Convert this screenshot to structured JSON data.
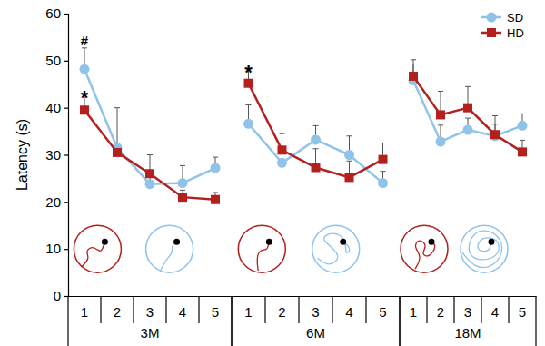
{
  "chart_data": [
    {
      "type": "line",
      "x_label": "3M",
      "y_label": "Latency (s)",
      "categories": [
        "1",
        "2",
        "3",
        "4",
        "5"
      ],
      "ylim": [
        0,
        60
      ],
      "yticks": [
        0,
        10,
        20,
        30,
        40,
        50,
        60
      ],
      "series": [
        {
          "name": "SD",
          "color": "#8fc3ea",
          "marker": "circle",
          "line_style": "solid",
          "values": [
            48.2,
            31.5,
            23.8,
            24.0,
            27.2
          ],
          "errors": [
            4.5,
            8.5,
            2.5,
            3.7,
            2.3
          ]
        },
        {
          "name": "HD",
          "color": "#b3201e",
          "marker": "square",
          "line_style": "solid",
          "values": [
            39.5,
            30.5,
            26.0,
            21.0,
            20.5
          ],
          "errors": [
            3.5,
            1.5,
            4.0,
            1.5,
            1.5
          ]
        }
      ],
      "annotations": [
        {
          "text": "#",
          "x": "1",
          "series": "SD"
        },
        {
          "text": "*",
          "x": "1",
          "series": "HD"
        }
      ]
    },
    {
      "type": "line",
      "x_label": "6M",
      "tick_labels": "x",
      "categories": [
        "1",
        "2",
        "3",
        "4",
        "5"
      ],
      "ylim": [
        0,
        60
      ],
      "series": [
        {
          "name": "SD",
          "color": "#8fc3ea",
          "marker": "circle",
          "line_style": "solid",
          "values": [
            36.6,
            28.3,
            33.2,
            30.0,
            24.0
          ],
          "errors": [
            4.0,
            2.5,
            3.0,
            4.0,
            2.5
          ]
        },
        {
          "name": "HD",
          "color": "#b3201e",
          "marker": "square",
          "line_style": "solid",
          "values": [
            45.2,
            31.0,
            27.3,
            25.2,
            29.0
          ],
          "errors": [
            3.2,
            3.5,
            4.0,
            3.5,
            3.5
          ]
        }
      ],
      "annotations": [
        {
          "text": "*",
          "x": "1",
          "series": "HD"
        }
      ]
    },
    {
      "type": "line",
      "x_label": "18M",
      "tick_labels": "x",
      "legend": "top-right",
      "categories": [
        "1",
        "2",
        "3",
        "4",
        "5"
      ],
      "ylim": [
        0,
        60
      ],
      "series": [
        {
          "name": "SD",
          "color": "#8fc3ea",
          "marker": "circle",
          "line_style": "solid",
          "values": [
            45.8,
            32.8,
            35.3,
            34.0,
            36.2
          ],
          "errors": [
            3.5,
            3.5,
            2.5,
            2.5,
            2.5
          ]
        },
        {
          "name": "HD",
          "color": "#b3201e",
          "marker": "square",
          "line_style": "solid",
          "values": [
            46.7,
            38.5,
            40.0,
            34.3,
            30.6
          ],
          "errors": [
            3.5,
            5.0,
            4.5,
            4.0,
            2.5
          ]
        }
      ]
    }
  ]
}
